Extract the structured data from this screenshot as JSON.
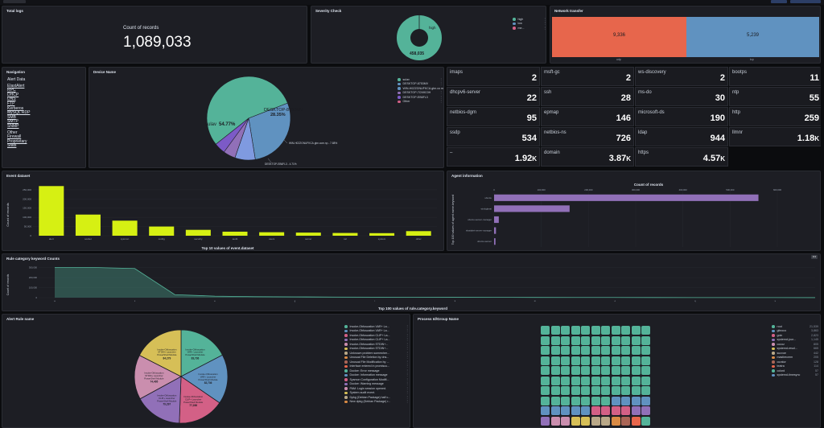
{
  "top": {
    "colors": [
      "#2c3e66",
      "#2c3e66"
    ]
  },
  "total_logs": {
    "title": "Total logs",
    "label": "Count of records",
    "value": "1,089,033"
  },
  "severity": {
    "title": "Severity Check",
    "slice_label": "high",
    "slice_value": "458,035",
    "legend": [
      {
        "label": "high",
        "color": "#54b399"
      },
      {
        "label": "low",
        "color": "#6092c0"
      },
      {
        "label": "me...",
        "color": "#d36086"
      }
    ]
  },
  "network": {
    "title": "Network transfer",
    "bars": [
      {
        "label": "udp",
        "value": "9,336",
        "color": "#e7664c"
      },
      {
        "label": "tcp",
        "value": "5,239",
        "color": "#6092c0"
      }
    ]
  },
  "navigation": {
    "title": "Navigation",
    "heading": "Alert Data",
    "links": [
      "ElastAlert",
      "RPC",
      "DHCP",
      "DNS",
      "FTP",
      "Kerberos",
      "MySQL RDP",
      "SMB",
      "SMTP",
      "SNMP"
    ],
    "other_heading": "Other",
    "other_links": [
      "Firewall",
      "Proprietary",
      "Stats"
    ]
  },
  "device": {
    "title": "Device Name",
    "big_label": "DESKTOP-8753MV",
    "big_pct": "28.35%",
    "main_label": "sulav",
    "main_pct": "54.77%",
    "small_label1": "WIN-H0ZZGNUFKCA.gbn.com.np - 7.88%",
    "small_label2": "DESKTOP-EB6FL3 - 4.71%",
    "legend": [
      {
        "label": "sulav",
        "color": "#54b399"
      },
      {
        "label": "DESKTOP-8753MV",
        "color": "#6092c0"
      },
      {
        "label": "WIN-H0ZZGNUFKCA.gbn.co m.np",
        "color": "#6092c0"
      },
      {
        "label": "DESKTOP-7CN9C0H",
        "color": "#9170b8"
      },
      {
        "label": "DESKTOP-EB6FL3",
        "color": "#7c5ac7"
      },
      {
        "label": "Other",
        "color": "#d36086"
      }
    ]
  },
  "tiles": [
    {
      "label": "imaps",
      "value": "2",
      "suffix": ""
    },
    {
      "label": "msft-gc",
      "value": "2",
      "suffix": ""
    },
    {
      "label": "ws-discovery",
      "value": "2",
      "suffix": ""
    },
    {
      "label": "bootps",
      "value": "11",
      "suffix": ""
    },
    {
      "label": "dhcpv6-server",
      "value": "22",
      "suffix": ""
    },
    {
      "label": "ssh",
      "value": "28",
      "suffix": ""
    },
    {
      "label": "ms-do",
      "value": "30",
      "suffix": ""
    },
    {
      "label": "ntp",
      "value": "55",
      "suffix": ""
    },
    {
      "label": "netbios-dgm",
      "value": "95",
      "suffix": ""
    },
    {
      "label": "epmap",
      "value": "146",
      "suffix": ""
    },
    {
      "label": "microsoft-ds",
      "value": "190",
      "suffix": ""
    },
    {
      "label": "http",
      "value": "259",
      "suffix": ""
    },
    {
      "label": "ssdp",
      "value": "534",
      "suffix": ""
    },
    {
      "label": "netbios-ns",
      "value": "726",
      "suffix": ""
    },
    {
      "label": "ldap",
      "value": "944",
      "suffix": ""
    },
    {
      "label": "llmnr",
      "value": "1.18",
      "suffix": "K"
    },
    {
      "label": "–",
      "value": "1.92",
      "suffix": "K"
    },
    {
      "label": "domain",
      "value": "3.87",
      "suffix": "K"
    },
    {
      "label": "https",
      "value": "4.57",
      "suffix": "K"
    }
  ],
  "event_dataset": {
    "title": "Event dataset",
    "ylabel": "Count of records",
    "xlabel": "Top 10 values of event.dataset",
    "color": "#d6f013"
  },
  "agent": {
    "title": "Agent information",
    "chart_title": "Count of records",
    "ylabel": "Top 100 values of agent.name.keyword",
    "color": "#9170b8"
  },
  "rule_category": {
    "title": "Rule category keyword Counts",
    "ylabel": "Count of records",
    "xlabel": "Top 100 values of rule.category.keyword",
    "color": "#54b399"
  },
  "alert_rule": {
    "title": "Alert Rule name",
    "slices": [
      {
        "label": "Invoke-Obfuscation VAR+ Launcher PowerShell Module",
        "value": "83,736",
        "color": "#54b399"
      },
      {
        "label": "Invoke-Obfuscation VAR+ Launcher PowerShell Module",
        "value": "82,736",
        "color": "#6092c0"
      },
      {
        "label": "Invoke-Obfuscation CLIP+ Launcher PowerShell Module",
        "value": "77,288",
        "color": "#d36086"
      },
      {
        "label": "Invoke-Obfuscation CLIP+ Launcher PowerShell Module",
        "value": "79,297",
        "color": "#9170b8"
      },
      {
        "label": "Invoke-Obfuscation STDIN+ Launcher PowerShell Module",
        "value": "74,465",
        "color": "#ca8eae"
      },
      {
        "label": "Invoke-Obfuscation STDIN+ Launcher PowerShell Module",
        "value": "84,279",
        "color": "#d6bf57"
      }
    ],
    "legend": [
      {
        "label": "Invoke-Obfuscation VAR+ La...",
        "color": "#54b399"
      },
      {
        "label": "Invoke-Obfuscation VAR+ La...",
        "color": "#6092c0"
      },
      {
        "label": "Invoke-Obfuscation CLIP+ La...",
        "color": "#d36086"
      },
      {
        "label": "Invoke-Obfuscation CLIP+ La...",
        "color": "#9170b8"
      },
      {
        "label": "Invoke-Obfuscation STDIN+...",
        "color": "#ca8eae"
      },
      {
        "label": "Invoke-Obfuscation STDIN+...",
        "color": "#d6bf57"
      },
      {
        "label": "Unknown problem somewher...",
        "color": "#b9a888"
      },
      {
        "label": "Unusual File Deletion by dns...",
        "color": "#da8b45"
      },
      {
        "label": "Unusual File Modification by ...",
        "color": "#aa6556"
      },
      {
        "label": "Interface entered in promiscu...",
        "color": "#e7664c"
      },
      {
        "label": "Docker: Error message",
        "color": "#54b399"
      },
      {
        "label": "Docker: Information message",
        "color": "#6092c0"
      },
      {
        "label": "Sysmon Configuration Modifi...",
        "color": "#d36086"
      },
      {
        "label": "Docker: Warning message",
        "color": "#9170b8"
      },
      {
        "label": "PAM: Login session opened.",
        "color": "#ca8eae"
      },
      {
        "label": "System audit event.",
        "color": "#d6bf57"
      },
      {
        "label": "Dpkg (Debian Package) half c...",
        "color": "#b9a888"
      },
      {
        "label": "New dpkg (Debian Package) r...",
        "color": "#da8b45"
      }
    ]
  },
  "process": {
    "title": "Process Id/Group Name",
    "legend": [
      {
        "label": "root",
        "value": "21,539",
        "color": "#54b399"
      },
      {
        "label": "gitnoco",
        "value": "3,863",
        "color": "#6092c0"
      },
      {
        "label": "goin",
        "value": "2,823",
        "color": "#d36086"
      },
      {
        "label": "systemd-jour...",
        "value": "1,145",
        "color": "#9170b8"
      },
      {
        "label": "cocoz",
        "value": "805",
        "color": "#ca8eae"
      },
      {
        "label": "systemd-resol...",
        "value": "665",
        "color": "#d6bf57"
      },
      {
        "label": "sucvoe",
        "value": "442",
        "color": "#b9a888"
      },
      {
        "label": "mastirecerm",
        "value": "205",
        "color": "#da8b45"
      },
      {
        "label": "curator",
        "value": "128",
        "color": "#aa6556"
      },
      {
        "label": "teatra",
        "value": "114",
        "color": "#e7664c"
      },
      {
        "label": "colord",
        "value": "57",
        "color": "#54b399"
      },
      {
        "label": "systemd-timesync",
        "value": "57",
        "color": "#6092c0"
      }
    ]
  },
  "chart_data": [
    {
      "type": "bar",
      "title": "Event dataset",
      "xlabel": "Top 10 values of event.dataset",
      "ylabel": "Count of records",
      "categories": [
        "alert",
        "socket",
        "sysmon",
        "config",
        "security",
        "audit",
        "users",
        "server",
        "ssl",
        "system",
        "other"
      ],
      "values": [
        270000,
        115000,
        82000,
        50000,
        32000,
        22000,
        19000,
        17000,
        15000,
        14000,
        25000
      ],
      "yticks": [
        "0",
        "50,000",
        "100,000",
        "150,000",
        "200,000",
        "250,000"
      ],
      "ylim": [
        0,
        280000
      ]
    },
    {
      "type": "bar",
      "title": "Count of records",
      "ylabel": "Top 100 values of agent.name.keyword",
      "categories": [
        "ubuntu",
        "winlogbeat",
        "ubuntu-sensor-manager",
        "elastalert-server-manager",
        "ubuntu-sensor"
      ],
      "values": [
        560000,
        160000,
        10000,
        4000,
        3000
      ],
      "xticks": [
        "0",
        "100,000",
        "200,000",
        "300,000",
        "400,000",
        "500,000",
        "600,000"
      ],
      "xlim": [
        0,
        600000
      ]
    },
    {
      "type": "area",
      "title": "Rule category keyword Counts",
      "xlabel": "Top 100 values of rule.category.keyword",
      "ylabel": "Count of records",
      "categories": [
        "a",
        "b",
        "c",
        "d",
        "e",
        "f",
        "g",
        "h",
        "i",
        "j",
        "k",
        "l",
        "m",
        "n",
        "o",
        "p",
        "q",
        "r",
        "s",
        "t"
      ],
      "values": [
        300000,
        300000,
        290000,
        30000,
        15000,
        10000,
        8000,
        6000,
        5000,
        4000,
        3500,
        3000,
        2500,
        2000,
        1800,
        1500,
        1200,
        1000,
        800,
        600
      ],
      "yticks": [
        "0",
        "100,000",
        "200,000",
        "300,000"
      ],
      "ylim": [
        0,
        320000
      ]
    }
  ]
}
